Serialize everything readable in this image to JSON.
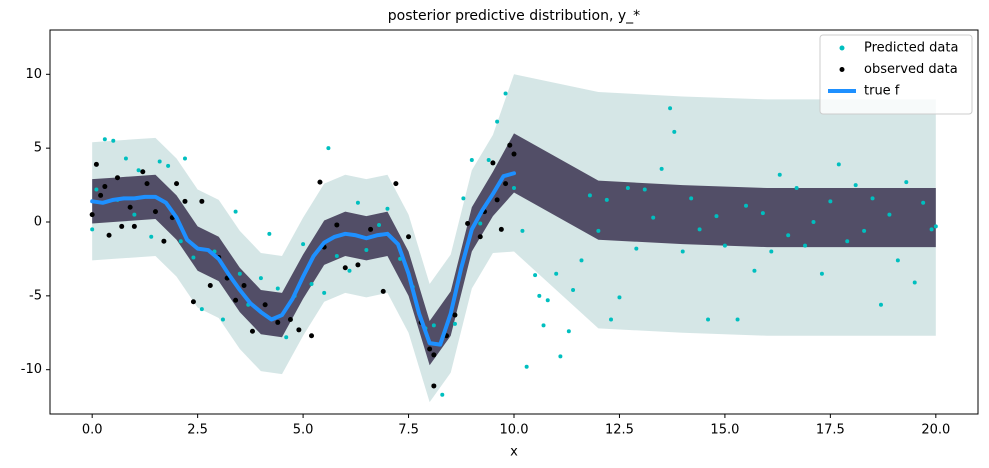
{
  "chart_data": {
    "type": "scatter",
    "title": "posterior predictive distribution, y_*",
    "x_label": "x",
    "xlim": [
      -1,
      21
    ],
    "xticks": [
      {
        "value": 0,
        "label": "0.0"
      },
      2.5,
      {
        "value": 5,
        "label": "5.0"
      },
      7.5,
      {
        "value": 10,
        "label": "10.0"
      },
      12.5,
      {
        "value": 15,
        "label": "15.0"
      },
      17.5,
      {
        "value": 20,
        "label": "20.0"
      }
    ],
    "ylim": [
      -13,
      13
    ],
    "yticks": [
      -10,
      -5,
      0,
      5,
      10
    ],
    "grid": false,
    "legend": "upper right",
    "band_x": [
      0,
      0.5,
      1,
      1.5,
      2,
      2.5,
      3,
      3.5,
      4,
      4.5,
      5,
      5.5,
      6,
      6.5,
      7,
      7.5,
      8,
      8.5,
      9,
      9.5,
      10,
      12,
      14,
      16,
      18,
      20
    ],
    "bands": [
      {
        "color": "#c3dcdc",
        "lower": [
          -2.6,
          -2.5,
          -2.4,
          -2.3,
          -3.7,
          -5.8,
          -6.5,
          -8.6,
          -10.1,
          -10.3,
          -7.7,
          -5.4,
          -4.8,
          -5.1,
          -4.8,
          -7.5,
          -12.2,
          -10.2,
          -4.5,
          -2.1,
          -2,
          -7.2,
          -7.5,
          -7.7,
          -7.7,
          -7.7
        ],
        "upper": [
          5.4,
          5.5,
          5.6,
          5.7,
          4.3,
          2.2,
          1.5,
          -0.6,
          -2.1,
          -2.3,
          0.3,
          2.6,
          3.2,
          2.9,
          3.2,
          0.5,
          -4.2,
          -2.2,
          3.5,
          5.9,
          10,
          8.8,
          8.5,
          8.3,
          8.3,
          8.3
        ]
      },
      {
        "color": "#3b3350",
        "lower": [
          -0.1,
          0,
          0.1,
          0.2,
          -1.2,
          -3.3,
          -4,
          -6.1,
          -7.6,
          -7.8,
          -5.2,
          -2.9,
          -2.3,
          -2.6,
          -2.3,
          -5,
          -9.7,
          -7.7,
          -2,
          0.4,
          2,
          -1.2,
          -1.5,
          -1.7,
          -1.7,
          -1.7
        ],
        "upper": [
          2.9,
          3,
          3.1,
          3.2,
          1.8,
          -0.3,
          -1,
          -3.1,
          -4.6,
          -4.8,
          -2.2,
          0.1,
          0.7,
          0.4,
          0.7,
          -2,
          -6.7,
          -4.7,
          1,
          3.4,
          6,
          2.8,
          2.5,
          2.3,
          2.3,
          2.3
        ]
      }
    ],
    "series": [
      {
        "name": "Predicted data",
        "type": "scatter",
        "color": "#00bfbf",
        "x": [
          0.0,
          0.1,
          0.3,
          0.5,
          0.6,
          0.8,
          1.0,
          1.1,
          1.4,
          1.6,
          1.8,
          2.1,
          2.2,
          2.4,
          2.6,
          2.9,
          3.1,
          3.4,
          3.5,
          3.7,
          4.0,
          4.2,
          4.4,
          4.6,
          4.8,
          5.0,
          5.2,
          5.5,
          5.6,
          5.8,
          6.1,
          6.3,
          6.5,
          6.8,
          7.0,
          7.3,
          7.6,
          7.9,
          8.1,
          8.3,
          8.6,
          8.8,
          9.0,
          9.2,
          9.4,
          9.6,
          9.8,
          10.0,
          10.2,
          10.3,
          10.5,
          10.6,
          10.7,
          10.8,
          11.0,
          11.1,
          11.3,
          11.4,
          11.6,
          11.8,
          12.0,
          12.2,
          12.3,
          12.5,
          12.7,
          12.9,
          13.1,
          13.3,
          13.5,
          13.7,
          13.8,
          14.0,
          14.2,
          14.4,
          14.6,
          14.8,
          15.0,
          15.3,
          15.5,
          15.7,
          15.9,
          16.1,
          16.3,
          16.5,
          16.7,
          16.9,
          17.1,
          17.3,
          17.5,
          17.7,
          17.9,
          18.1,
          18.3,
          18.5,
          18.7,
          18.9,
          19.1,
          19.3,
          19.5,
          19.7,
          19.9,
          20.0
        ],
        "values": [
          -0.5,
          2.2,
          5.6,
          5.5,
          1.5,
          4.3,
          0.5,
          3.5,
          -1.0,
          4.1,
          3.8,
          -1.3,
          4.3,
          -2.4,
          -5.9,
          -2.0,
          -6.6,
          0.7,
          -3.5,
          -5.6,
          -3.8,
          -0.8,
          -4.5,
          -7.8,
          -5.0,
          -1.5,
          -4.2,
          -4.8,
          5.0,
          -2.3,
          -3.3,
          1.3,
          -1.9,
          -0.2,
          0.9,
          -2.5,
          -4.4,
          -7.2,
          -7.0,
          -11.7,
          -6.9,
          1.6,
          4.2,
          -0.1,
          4.2,
          6.8,
          8.7,
          2.3,
          -0.6,
          -9.8,
          -3.6,
          -5.0,
          -7.0,
          -5.3,
          -3.5,
          -9.1,
          -7.4,
          -4.6,
          -2.6,
          1.8,
          -0.6,
          1.5,
          -6.6,
          -5.1,
          2.3,
          -1.8,
          2.2,
          0.3,
          3.6,
          7.7,
          6.1,
          -2.0,
          1.6,
          -0.5,
          -6.6,
          0.4,
          -1.6,
          -6.6,
          1.1,
          -3.3,
          0.6,
          -2.0,
          3.2,
          -0.9,
          2.3,
          -1.6,
          0.0,
          -3.5,
          1.4,
          3.9,
          -1.3,
          2.5,
          -0.6,
          1.6,
          -5.6,
          0.5,
          -2.6,
          2.7,
          -4.1,
          1.3,
          -0.5,
          -0.3
        ]
      },
      {
        "name": "observed data",
        "type": "scatter",
        "color": "#000000",
        "x": [
          0.0,
          0.1,
          0.2,
          0.3,
          0.4,
          0.6,
          0.7,
          0.9,
          1.0,
          1.2,
          1.3,
          1.5,
          1.7,
          1.9,
          2.0,
          2.2,
          2.4,
          2.6,
          2.8,
          3.0,
          3.2,
          3.4,
          3.6,
          3.8,
          4.1,
          4.4,
          4.7,
          4.9,
          5.2,
          5.4,
          5.5,
          5.8,
          6.0,
          6.3,
          6.6,
          6.9,
          7.2,
          7.5,
          7.8,
          8.0,
          8.1,
          8.1,
          8.4,
          8.6,
          8.9,
          9.2,
          9.3,
          9.5,
          9.6,
          9.7,
          9.8,
          9.9,
          10.0
        ],
        "values": [
          0.5,
          3.9,
          1.8,
          2.4,
          -0.9,
          3.0,
          -0.3,
          1.0,
          -0.3,
          3.4,
          2.6,
          0.7,
          -1.3,
          0.3,
          2.6,
          1.4,
          -5.4,
          1.4,
          -4.3,
          -2.4,
          -3.8,
          -5.3,
          -4.3,
          -7.4,
          -5.6,
          -6.8,
          -6.6,
          -7.3,
          -7.7,
          2.7,
          -1.7,
          -0.2,
          -3.1,
          -2.9,
          -0.5,
          -4.7,
          2.6,
          -1.0,
          -6.8,
          -8.6,
          -9.0,
          -11.1,
          -7.7,
          -6.3,
          -0.1,
          -1.0,
          0.7,
          4.0,
          1.5,
          -0.5,
          2.6,
          5.2,
          4.6
        ]
      },
      {
        "name": "true f",
        "type": "line",
        "color": "#1e90ff",
        "x": [
          0,
          0.25,
          0.5,
          0.75,
          1,
          1.25,
          1.5,
          1.75,
          2,
          2.25,
          2.5,
          2.75,
          3,
          3.25,
          3.5,
          3.75,
          4,
          4.25,
          4.5,
          4.75,
          5,
          5.25,
          5.5,
          5.75,
          6,
          6.25,
          6.5,
          6.75,
          7,
          7.25,
          7.5,
          7.75,
          8,
          8.25,
          8.5,
          8.75,
          9,
          9.25,
          9.5,
          9.75,
          10
        ],
        "values": [
          1.4,
          1.3,
          1.5,
          1.6,
          1.6,
          1.7,
          1.7,
          1.3,
          0.3,
          -1.2,
          -1.8,
          -1.9,
          -2.5,
          -3.6,
          -4.6,
          -5.5,
          -6.1,
          -6.6,
          -6.3,
          -5.2,
          -3.7,
          -2.3,
          -1.4,
          -1.0,
          -0.8,
          -0.9,
          -1.1,
          -0.9,
          -0.8,
          -1.5,
          -3.5,
          -6.2,
          -8.2,
          -8.3,
          -6.2,
          -3.1,
          -0.5,
          0.8,
          1.9,
          3.1,
          3.3
        ]
      }
    ]
  }
}
